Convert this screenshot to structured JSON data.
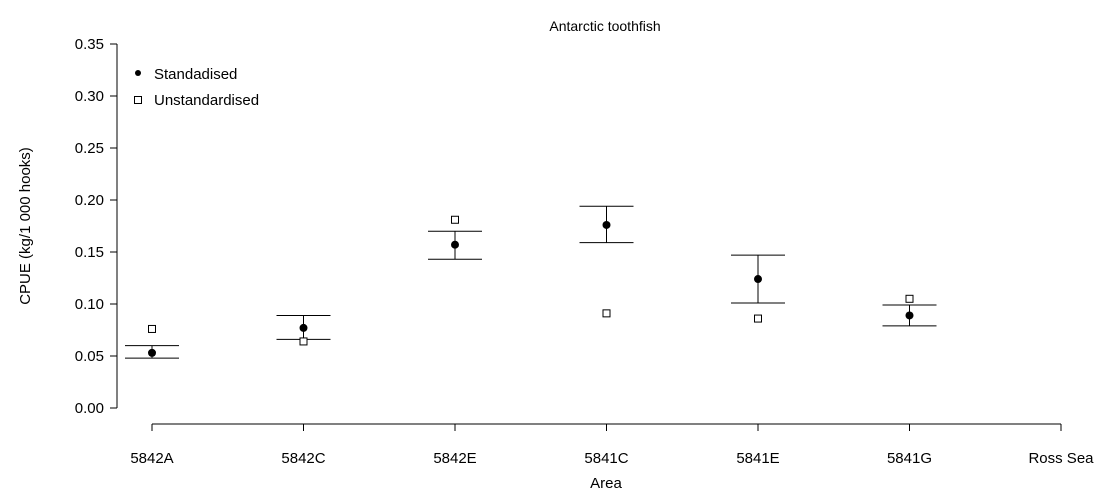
{
  "chart_data": {
    "type": "scatter",
    "title": "Antarctic toothfish",
    "xlabel": "Area",
    "ylabel": "CPUE (kg/1 000 hooks)",
    "categories": [
      "5842A",
      "5842C",
      "5842E",
      "5841C",
      "5841E",
      "5841G",
      "Ross Sea"
    ],
    "ylim": [
      0,
      0.35
    ],
    "yticks": [
      "0.00",
      "0.05",
      "0.10",
      "0.15",
      "0.20",
      "0.25",
      "0.30",
      "0.35"
    ],
    "grid": false,
    "legend_position": "top-left",
    "series": [
      {
        "name": "Standadised",
        "marker": "filled-circle",
        "values": [
          0.053,
          0.077,
          0.157,
          0.176,
          0.124,
          0.089,
          null
        ],
        "lower": [
          0.048,
          0.066,
          0.143,
          0.159,
          0.101,
          0.079,
          null
        ],
        "upper": [
          0.06,
          0.089,
          0.17,
          0.194,
          0.147,
          0.099,
          null
        ]
      },
      {
        "name": "Unstandardised",
        "marker": "open-square",
        "values": [
          0.076,
          0.064,
          0.181,
          0.091,
          0.086,
          0.105,
          null
        ]
      }
    ]
  }
}
